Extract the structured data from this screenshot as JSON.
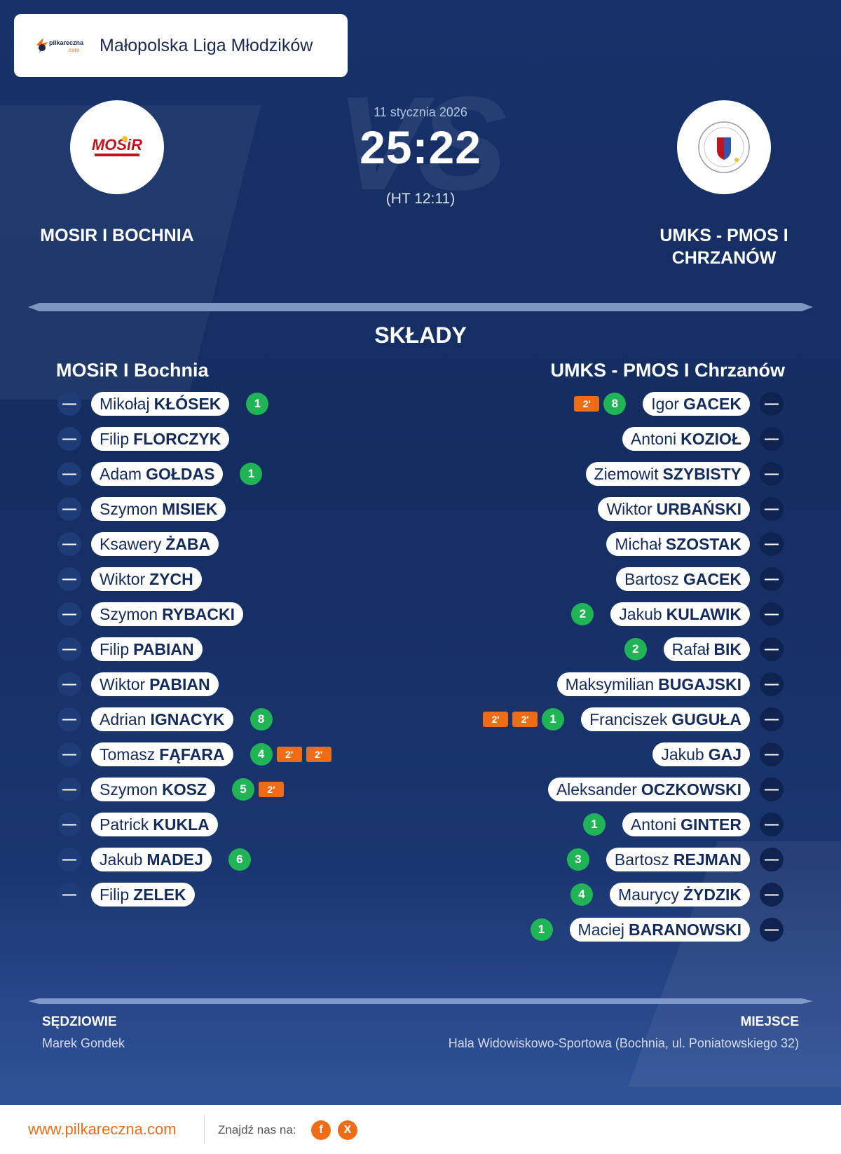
{
  "league": {
    "name": "Małopolska Liga Młodzików",
    "logo_text": "pilkareczna .com"
  },
  "match": {
    "date": "11 stycznia 2026",
    "score": "25:22",
    "halftime": "(HT 12:11)",
    "vs_watermark": "VS"
  },
  "home_team": {
    "name": "MOSIR I BOCHNIA",
    "logo_text": "MOSiR"
  },
  "away_team": {
    "name_line1": "UMKS - PMOS I",
    "name_line2": "CHRZANÓW",
    "logo_text": "UMKS"
  },
  "lineups": {
    "title": "SKŁADY",
    "home_title": "MOSiR I Bochnia",
    "away_title": "UMKS - PMOS I Chrzanów",
    "number_placeholder": "—",
    "penalty_label": "2'",
    "home_players": [
      {
        "first": "Mikołaj",
        "last": "KŁÓSEK",
        "goals": "1",
        "penalties": 0
      },
      {
        "first": "Filip",
        "last": "FLORCZYK",
        "goals": "",
        "penalties": 0
      },
      {
        "first": "Adam",
        "last": "GOŁDAS",
        "goals": "1",
        "penalties": 0
      },
      {
        "first": "Szymon",
        "last": "MISIEK",
        "goals": "",
        "penalties": 0
      },
      {
        "first": "Ksawery",
        "last": "ŻABA",
        "goals": "",
        "penalties": 0
      },
      {
        "first": "Wiktor",
        "last": "ZYCH",
        "goals": "",
        "penalties": 0
      },
      {
        "first": "Szymon",
        "last": "RYBACKI",
        "goals": "",
        "penalties": 0
      },
      {
        "first": "Filip",
        "last": "PABIAN",
        "goals": "",
        "penalties": 0
      },
      {
        "first": "Wiktor",
        "last": "PABIAN",
        "goals": "",
        "penalties": 0
      },
      {
        "first": "Adrian",
        "last": "IGNACYK",
        "goals": "8",
        "penalties": 0
      },
      {
        "first": "Tomasz",
        "last": "FĄFARA",
        "goals": "4",
        "penalties": 2
      },
      {
        "first": "Szymon",
        "last": "KOSZ",
        "goals": "5",
        "penalties": 1
      },
      {
        "first": "Patrick",
        "last": "KUKLA",
        "goals": "",
        "penalties": 0
      },
      {
        "first": "Jakub",
        "last": "MADEJ",
        "goals": "6",
        "penalties": 0
      },
      {
        "first": "Filip",
        "last": "ZELEK",
        "goals": "",
        "penalties": 0
      }
    ],
    "away_players": [
      {
        "first": "Igor",
        "last": "GACEK",
        "goals": "8",
        "penalties": 1
      },
      {
        "first": "Antoni",
        "last": "KOZIOŁ",
        "goals": "",
        "penalties": 0
      },
      {
        "first": "Ziemowit",
        "last": "SZYBISTY",
        "goals": "",
        "penalties": 0
      },
      {
        "first": "Wiktor",
        "last": "URBAŃSKI",
        "goals": "",
        "penalties": 0
      },
      {
        "first": "Michał",
        "last": "SZOSTAK",
        "goals": "",
        "penalties": 0
      },
      {
        "first": "Bartosz",
        "last": "GACEK",
        "goals": "",
        "penalties": 0
      },
      {
        "first": "Jakub",
        "last": "KULAWIK",
        "goals": "2",
        "penalties": 0
      },
      {
        "first": "Rafał",
        "last": "BIK",
        "goals": "2",
        "penalties": 0
      },
      {
        "first": "Maksymilian",
        "last": "BUGAJSKI",
        "goals": "",
        "penalties": 0
      },
      {
        "first": "Franciszek",
        "last": "GUGUŁA",
        "goals": "1",
        "penalties": 2
      },
      {
        "first": "Jakub",
        "last": "GAJ",
        "goals": "",
        "penalties": 0
      },
      {
        "first": "Aleksander",
        "last": "OCZKOWSKI",
        "goals": "",
        "penalties": 0
      },
      {
        "first": "Antoni",
        "last": "GINTER",
        "goals": "1",
        "penalties": 0
      },
      {
        "first": "Bartosz",
        "last": "REJMAN",
        "goals": "3",
        "penalties": 0
      },
      {
        "first": "Maurycy",
        "last": "ŻYDZIK",
        "goals": "4",
        "penalties": 0
      },
      {
        "first": "Maciej",
        "last": "BARANOWSKI",
        "goals": "1",
        "penalties": 0
      }
    ]
  },
  "footer": {
    "referees_label": "SĘDZIOWIE",
    "referees": "Marek Gondek",
    "venue_label": "MIEJSCE",
    "venue": "Hala Widowiskowo-Sportowa (Bochnia, ul. Poniatowskiego 32)"
  },
  "bottom_bar": {
    "website": "www.pilkareczna.com",
    "find_us": "Znajdź nas na:",
    "social": [
      {
        "icon": "facebook-icon",
        "glyph": "f"
      },
      {
        "icon": "x-icon",
        "glyph": "X"
      }
    ]
  },
  "colors": {
    "background": "#17326a",
    "goal_badge": "#21b457",
    "penalty_badge": "#ee6c16",
    "accent": "#ee6c16"
  }
}
